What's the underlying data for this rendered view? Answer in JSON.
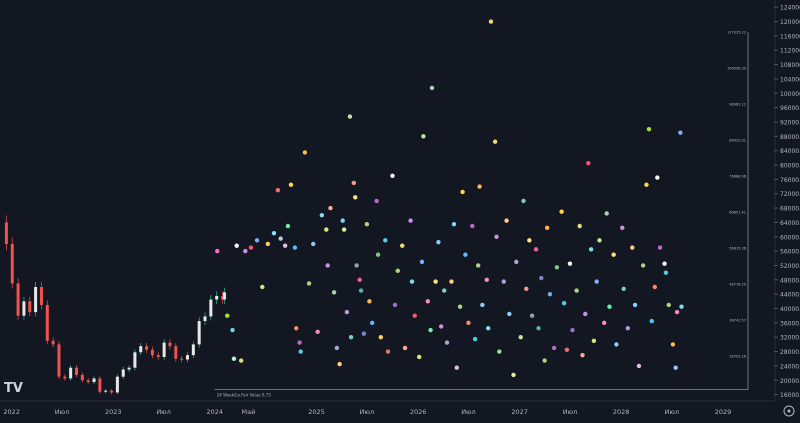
{
  "theme": {
    "background": "#131722",
    "axis_text": "#b2b5be",
    "grid": "#1e222d",
    "candle_up": "#e8e8e8",
    "candle_down": "#ef5350",
    "wick_up": "#2fbf9b",
    "reference_line": "#8a8f98"
  },
  "chart_data": {
    "type": "scatter",
    "title": "",
    "xlabel": "",
    "ylabel": "",
    "x_ticks": [
      {
        "date": "2022-01-01",
        "label": "2022"
      },
      {
        "date": "2022-07-01",
        "label": "Июл"
      },
      {
        "date": "2023-01-01",
        "label": "2023"
      },
      {
        "date": "2023-07-01",
        "label": "Июл"
      },
      {
        "date": "2024-01-01",
        "label": "2024"
      },
      {
        "date": "2024-05-01",
        "label": "Май"
      },
      {
        "date": "2025-01-01",
        "label": "2025"
      },
      {
        "date": "2025-07-01",
        "label": "Июл"
      },
      {
        "date": "2026-01-01",
        "label": "2026"
      },
      {
        "date": "2026-07-01",
        "label": "Июл"
      },
      {
        "date": "2027-01-01",
        "label": "2027"
      },
      {
        "date": "2027-07-01",
        "label": "Июл"
      },
      {
        "date": "2028-01-01",
        "label": "2028"
      },
      {
        "date": "2028-07-01",
        "label": "Июл"
      },
      {
        "date": "2029-01-01",
        "label": "2029"
      }
    ],
    "xlim": [
      "2021-11-20",
      "2029-04-01"
    ],
    "y_ticks": [
      "16000.00",
      "20000.00",
      "24000.00",
      "28000.00",
      "32000.00",
      "36000.00",
      "40000.00",
      "44000.00",
      "48000.00",
      "52000.00",
      "56000.00",
      "60000.00",
      "64000.00",
      "68000.00",
      "72000.00",
      "76000.00",
      "80000.00",
      "84000.00",
      "88000.00",
      "92000.00",
      "96000.00",
      "100000.00",
      "104000.00",
      "108000.00",
      "112000.00",
      "116000.00",
      "120000.00",
      "124000.00"
    ],
    "ylim": [
      14500,
      126000
    ],
    "price_series": {
      "name": "BTC",
      "points": [
        [
          "2021-11-22",
          64000
        ],
        [
          "2021-12-13",
          58000
        ],
        [
          "2022-01-03",
          47000
        ],
        [
          "2022-01-24",
          38000
        ],
        [
          "2022-02-14",
          42000
        ],
        [
          "2022-03-07",
          39000
        ],
        [
          "2022-03-28",
          46000
        ],
        [
          "2022-04-18",
          41000
        ],
        [
          "2022-05-09",
          31000
        ],
        [
          "2022-05-30",
          30000
        ],
        [
          "2022-06-20",
          21000
        ],
        [
          "2022-07-11",
          20500
        ],
        [
          "2022-08-01",
          23500
        ],
        [
          "2022-08-22",
          21500
        ],
        [
          "2022-09-12",
          20000
        ],
        [
          "2022-10-03",
          19500
        ],
        [
          "2022-10-24",
          20500
        ],
        [
          "2022-11-14",
          16800
        ],
        [
          "2022-12-05",
          17100
        ],
        [
          "2022-12-26",
          16600
        ],
        [
          "2023-01-16",
          21000
        ],
        [
          "2023-02-06",
          23000
        ],
        [
          "2023-02-27",
          23500
        ],
        [
          "2023-03-20",
          27800
        ],
        [
          "2023-04-10",
          29500
        ],
        [
          "2023-05-01",
          28500
        ],
        [
          "2023-05-22",
          27000
        ],
        [
          "2023-06-12",
          26500
        ],
        [
          "2023-07-03",
          30500
        ],
        [
          "2023-07-24",
          29500
        ],
        [
          "2023-08-14",
          26000
        ],
        [
          "2023-09-04",
          25800
        ],
        [
          "2023-09-25",
          27000
        ],
        [
          "2023-10-16",
          30000
        ],
        [
          "2023-11-06",
          36500
        ],
        [
          "2023-11-27",
          37800
        ],
        [
          "2023-12-18",
          42500
        ],
        [
          "2024-01-08",
          43500
        ],
        [
          "2024-01-29",
          42500
        ],
        [
          "2024-02-05",
          44500
        ]
      ]
    },
    "reference_line": {
      "label": "24 Week/Lo.Fair Value 0.73",
      "value": 17400
    },
    "right_labels": [
      {
        "value": 117035,
        "label": "117035.22"
      },
      {
        "value": 106998,
        "label": "106998.39"
      },
      {
        "value": 96962,
        "label": "96962.11"
      },
      {
        "value": 86925,
        "label": "86925.01"
      },
      {
        "value": 76888,
        "label": "76888.96"
      },
      {
        "value": 66851,
        "label": "66851.41"
      },
      {
        "value": 56815,
        "label": "56815.36"
      },
      {
        "value": 46778,
        "label": "46778.20"
      },
      {
        "value": 36741,
        "label": "36741.57"
      },
      {
        "value": 26705,
        "label": "26705.26"
      }
    ],
    "prediction_dots": [
      {
        "x": "2024-01-10",
        "y": 56000,
        "c": "#ff6ec7"
      },
      {
        "x": "2024-02-15",
        "y": 38000,
        "c": "#a6e22e"
      },
      {
        "x": "2024-03-05",
        "y": 34000,
        "c": "#66d9ef"
      },
      {
        "x": "2024-03-10",
        "y": 26000,
        "c": "#b9f6ca"
      },
      {
        "x": "2024-03-20",
        "y": 57500,
        "c": "#f8f8f2"
      },
      {
        "x": "2024-04-05",
        "y": 25500,
        "c": "#e6db74"
      },
      {
        "x": "2024-04-20",
        "y": 56000,
        "c": "#c792ea"
      },
      {
        "x": "2024-05-10",
        "y": 57000,
        "c": "#ff5370"
      },
      {
        "x": "2024-06-01",
        "y": 59000,
        "c": "#82aaff"
      },
      {
        "x": "2024-06-20",
        "y": 46000,
        "c": "#c3e88d"
      },
      {
        "x": "2024-07-10",
        "y": 58000,
        "c": "#ffcb6b"
      },
      {
        "x": "2024-08-01",
        "y": 61000,
        "c": "#89ddff"
      },
      {
        "x": "2024-08-15",
        "y": 73000,
        "c": "#f07178"
      },
      {
        "x": "2024-08-25",
        "y": 59500,
        "c": "#b2ccd6"
      },
      {
        "x": "2024-09-10",
        "y": 57500,
        "c": "#e1bee7"
      },
      {
        "x": "2024-09-20",
        "y": 63000,
        "c": "#69f0ae"
      },
      {
        "x": "2024-10-01",
        "y": 74500,
        "c": "#ffd54f"
      },
      {
        "x": "2024-10-15",
        "y": 57000,
        "c": "#4fc3f7"
      },
      {
        "x": "2024-10-20",
        "y": 34500,
        "c": "#ff8a65"
      },
      {
        "x": "2024-11-01",
        "y": 30500,
        "c": "#ba68c8"
      },
      {
        "x": "2024-11-05",
        "y": 28000,
        "c": "#4dd0e1"
      },
      {
        "x": "2024-11-20",
        "y": 83500,
        "c": "#ffb74d"
      },
      {
        "x": "2024-12-05",
        "y": 47000,
        "c": "#aed581"
      },
      {
        "x": "2024-12-20",
        "y": 58000,
        "c": "#90caf9"
      },
      {
        "x": "2025-01-05",
        "y": 33500,
        "c": "#f48fb1"
      },
      {
        "x": "2025-01-20",
        "y": 66000,
        "c": "#80deea"
      },
      {
        "x": "2025-02-05",
        "y": 62000,
        "c": "#dce775"
      },
      {
        "x": "2025-02-10",
        "y": 52000,
        "c": "#ce93d8"
      },
      {
        "x": "2025-02-20",
        "y": 68000,
        "c": "#ffab91"
      },
      {
        "x": "2025-03-05",
        "y": 44500,
        "c": "#a5d6a7"
      },
      {
        "x": "2025-03-15",
        "y": 29000,
        "c": "#9fa8da"
      },
      {
        "x": "2025-03-25",
        "y": 24500,
        "c": "#ffcc80"
      },
      {
        "x": "2025-04-05",
        "y": 64500,
        "c": "#81d4fa"
      },
      {
        "x": "2025-04-10",
        "y": 62000,
        "c": "#e6ee9c"
      },
      {
        "x": "2025-04-20",
        "y": 39000,
        "c": "#b39ddb"
      },
      {
        "x": "2025-05-01",
        "y": 93500,
        "c": "#c5e1a5"
      },
      {
        "x": "2025-05-05",
        "y": 32000,
        "c": "#80cbc4"
      },
      {
        "x": "2025-05-15",
        "y": 75000,
        "c": "#ef9a9a"
      },
      {
        "x": "2025-05-20",
        "y": 71000,
        "c": "#ffe082"
      },
      {
        "x": "2025-05-25",
        "y": 52000,
        "c": "#90a4ae"
      },
      {
        "x": "2025-06-05",
        "y": 48000,
        "c": "#f06292"
      },
      {
        "x": "2025-06-10",
        "y": 45000,
        "c": "#4db6ac"
      },
      {
        "x": "2025-06-20",
        "y": 33000,
        "c": "#7986cb"
      },
      {
        "x": "2025-07-01",
        "y": 63500,
        "c": "#aed581"
      },
      {
        "x": "2025-07-10",
        "y": 42000,
        "c": "#ffb74d"
      },
      {
        "x": "2025-07-20",
        "y": 36000,
        "c": "#64b5f6"
      },
      {
        "x": "2025-08-05",
        "y": 70000,
        "c": "#ba68c8"
      },
      {
        "x": "2025-08-10",
        "y": 55000,
        "c": "#81c784"
      },
      {
        "x": "2025-08-20",
        "y": 32000,
        "c": "#ffd54f"
      },
      {
        "x": "2025-09-05",
        "y": 59000,
        "c": "#4dd0e1"
      },
      {
        "x": "2025-09-15",
        "y": 28000,
        "c": "#e57373"
      },
      {
        "x": "2025-10-01",
        "y": 77000,
        "c": "#f8f8f2"
      },
      {
        "x": "2025-10-10",
        "y": 41000,
        "c": "#9575cd"
      },
      {
        "x": "2025-10-20",
        "y": 50500,
        "c": "#aed581"
      },
      {
        "x": "2025-11-05",
        "y": 57500,
        "c": "#e6db74"
      },
      {
        "x": "2025-11-15",
        "y": 29000,
        "c": "#ffab91"
      },
      {
        "x": "2025-12-05",
        "y": 64500,
        "c": "#c792ea"
      },
      {
        "x": "2025-12-10",
        "y": 47500,
        "c": "#80deea"
      },
      {
        "x": "2025-12-20",
        "y": 38000,
        "c": "#ff5370"
      },
      {
        "x": "2026-01-05",
        "y": 26500,
        "c": "#dce775"
      },
      {
        "x": "2026-01-15",
        "y": 53000,
        "c": "#82aaff"
      },
      {
        "x": "2026-01-20",
        "y": 88000,
        "c": "#c3e88d"
      },
      {
        "x": "2026-02-05",
        "y": 42000,
        "c": "#f48fb1"
      },
      {
        "x": "2026-02-15",
        "y": 34000,
        "c": "#69f0ae"
      },
      {
        "x": "2026-02-20",
        "y": 101500,
        "c": "#a5d6a7"
      },
      {
        "x": "2026-03-05",
        "y": 47500,
        "c": "#ffe082"
      },
      {
        "x": "2026-03-15",
        "y": 58500,
        "c": "#90caf9"
      },
      {
        "x": "2026-03-25",
        "y": 35000,
        "c": "#ce93d8"
      },
      {
        "x": "2026-04-05",
        "y": 45000,
        "c": "#80cbc4"
      },
      {
        "x": "2026-04-15",
        "y": 30500,
        "c": "#b39ddb"
      },
      {
        "x": "2026-05-01",
        "y": 47500,
        "c": "#ffcc80"
      },
      {
        "x": "2026-05-10",
        "y": 63500,
        "c": "#81d4fa"
      },
      {
        "x": "2026-05-20",
        "y": 23500,
        "c": "#e1bee7"
      },
      {
        "x": "2026-06-01",
        "y": 40500,
        "c": "#aed581"
      },
      {
        "x": "2026-06-10",
        "y": 72500,
        "c": "#ffd54f"
      },
      {
        "x": "2026-06-20",
        "y": 55000,
        "c": "#4fc3f7"
      },
      {
        "x": "2026-07-01",
        "y": 36000,
        "c": "#ff8a65"
      },
      {
        "x": "2026-07-15",
        "y": 63000,
        "c": "#ba68c8"
      },
      {
        "x": "2026-07-25",
        "y": 31500,
        "c": "#4dd0e1"
      },
      {
        "x": "2026-08-05",
        "y": 52000,
        "c": "#aed581"
      },
      {
        "x": "2026-08-10",
        "y": 74000,
        "c": "#ffb74d"
      },
      {
        "x": "2026-08-20",
        "y": 41000,
        "c": "#90caf9"
      },
      {
        "x": "2026-09-05",
        "y": 48000,
        "c": "#f48fb1"
      },
      {
        "x": "2026-09-10",
        "y": 34500,
        "c": "#80deea"
      },
      {
        "x": "2026-09-20",
        "y": 120000,
        "c": "#e6db74"
      },
      {
        "x": "2026-10-05",
        "y": 86500,
        "c": "#e6db74"
      },
      {
        "x": "2026-10-10",
        "y": 60000,
        "c": "#ce93d8"
      },
      {
        "x": "2026-10-20",
        "y": 28000,
        "c": "#a5d6a7"
      },
      {
        "x": "2026-11-05",
        "y": 47500,
        "c": "#9fa8da"
      },
      {
        "x": "2026-11-15",
        "y": 64500,
        "c": "#ffcc80"
      },
      {
        "x": "2026-11-25",
        "y": 38500,
        "c": "#81d4fa"
      },
      {
        "x": "2026-12-10",
        "y": 21500,
        "c": "#e6ee9c"
      },
      {
        "x": "2026-12-20",
        "y": 53000,
        "c": "#b39ddb"
      },
      {
        "x": "2027-01-05",
        "y": 32000,
        "c": "#c5e1a5"
      },
      {
        "x": "2027-01-15",
        "y": 70000,
        "c": "#80cbc4"
      },
      {
        "x": "2027-01-25",
        "y": 45500,
        "c": "#ef9a9a"
      },
      {
        "x": "2027-02-05",
        "y": 59000,
        "c": "#ffe082"
      },
      {
        "x": "2027-02-15",
        "y": 38000,
        "c": "#90a4ae"
      },
      {
        "x": "2027-03-01",
        "y": 56500,
        "c": "#f06292"
      },
      {
        "x": "2027-03-10",
        "y": 34500,
        "c": "#4db6ac"
      },
      {
        "x": "2027-03-20",
        "y": 48500,
        "c": "#7986cb"
      },
      {
        "x": "2027-04-01",
        "y": 25500,
        "c": "#aed581"
      },
      {
        "x": "2027-04-10",
        "y": 62500,
        "c": "#ffb74d"
      },
      {
        "x": "2027-04-20",
        "y": 44000,
        "c": "#64b5f6"
      },
      {
        "x": "2027-05-05",
        "y": 29000,
        "c": "#ba68c8"
      },
      {
        "x": "2027-05-15",
        "y": 51500,
        "c": "#81c784"
      },
      {
        "x": "2027-06-01",
        "y": 67000,
        "c": "#ffd54f"
      },
      {
        "x": "2027-06-10",
        "y": 41500,
        "c": "#4dd0e1"
      },
      {
        "x": "2027-06-20",
        "y": 28500,
        "c": "#e57373"
      },
      {
        "x": "2027-07-01",
        "y": 52500,
        "c": "#f8f8f2"
      },
      {
        "x": "2027-07-10",
        "y": 34000,
        "c": "#9575cd"
      },
      {
        "x": "2027-07-25",
        "y": 45000,
        "c": "#aed581"
      },
      {
        "x": "2027-08-05",
        "y": 63000,
        "c": "#e6db74"
      },
      {
        "x": "2027-08-15",
        "y": 27000,
        "c": "#ffab91"
      },
      {
        "x": "2027-08-25",
        "y": 38500,
        "c": "#c792ea"
      },
      {
        "x": "2027-09-05",
        "y": 80500,
        "c": "#ff5370"
      },
      {
        "x": "2027-09-15",
        "y": 56500,
        "c": "#80deea"
      },
      {
        "x": "2027-09-25",
        "y": 31000,
        "c": "#dce775"
      },
      {
        "x": "2027-10-05",
        "y": 47500,
        "c": "#82aaff"
      },
      {
        "x": "2027-10-15",
        "y": 59000,
        "c": "#c3e88d"
      },
      {
        "x": "2027-11-01",
        "y": 36000,
        "c": "#f48fb1"
      },
      {
        "x": "2027-11-10",
        "y": 66500,
        "c": "#a5d6a7"
      },
      {
        "x": "2027-11-20",
        "y": 40500,
        "c": "#69f0ae"
      },
      {
        "x": "2027-12-05",
        "y": 55000,
        "c": "#ffe082"
      },
      {
        "x": "2027-12-15",
        "y": 30000,
        "c": "#90caf9"
      },
      {
        "x": "2028-01-05",
        "y": 62500,
        "c": "#ce93d8"
      },
      {
        "x": "2028-01-10",
        "y": 45500,
        "c": "#80cbc4"
      },
      {
        "x": "2028-01-25",
        "y": 34500,
        "c": "#b39ddb"
      },
      {
        "x": "2028-02-10",
        "y": 57000,
        "c": "#ffcc80"
      },
      {
        "x": "2028-02-20",
        "y": 41000,
        "c": "#81d4fa"
      },
      {
        "x": "2028-03-05",
        "y": 24000,
        "c": "#e1bee7"
      },
      {
        "x": "2028-03-20",
        "y": 52000,
        "c": "#aed581"
      },
      {
        "x": "2028-04-01",
        "y": 74500,
        "c": "#ffd54f"
      },
      {
        "x": "2028-04-10",
        "y": 90000,
        "c": "#a6e22e"
      },
      {
        "x": "2028-04-20",
        "y": 36500,
        "c": "#4fc3f7"
      },
      {
        "x": "2028-05-01",
        "y": 46000,
        "c": "#ff8a65"
      },
      {
        "x": "2028-05-10",
        "y": 76500,
        "c": "#f8f8f2"
      },
      {
        "x": "2028-05-20",
        "y": 57000,
        "c": "#ba68c8"
      },
      {
        "x": "2028-06-05",
        "y": 52500,
        "c": "#f8f8f2"
      },
      {
        "x": "2028-06-10",
        "y": 50000,
        "c": "#4dd0e1"
      },
      {
        "x": "2028-06-20",
        "y": 41000,
        "c": "#aed581"
      },
      {
        "x": "2028-07-05",
        "y": 30000,
        "c": "#ffb74d"
      },
      {
        "x": "2028-07-15",
        "y": 23500,
        "c": "#90caf9"
      },
      {
        "x": "2028-07-20",
        "y": 39000,
        "c": "#f48fb1"
      },
      {
        "x": "2028-08-01",
        "y": 89000,
        "c": "#82aaff"
      },
      {
        "x": "2028-08-05",
        "y": 40500,
        "c": "#80deea"
      }
    ]
  }
}
